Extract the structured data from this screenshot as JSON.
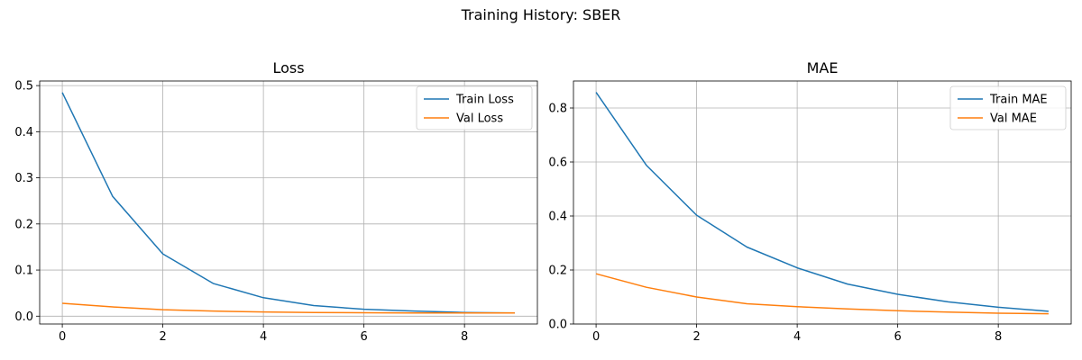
{
  "figure": {
    "suptitle": "Training History: SBER"
  },
  "chart_data": [
    {
      "type": "line",
      "title": "Loss",
      "xlabel": "",
      "ylabel": "",
      "x": [
        0,
        1,
        2,
        3,
        4,
        5,
        6,
        7,
        8,
        9
      ],
      "xlim": [
        -0.45,
        9.45
      ],
      "ylim": [
        -0.017,
        0.51
      ],
      "xticks": [
        0,
        2,
        4,
        6,
        8
      ],
      "yticks": [
        0.0,
        0.1,
        0.2,
        0.3,
        0.4,
        0.5
      ],
      "ytick_labels": [
        "0.0",
        "0.1",
        "0.2",
        "0.3",
        "0.4",
        "0.5"
      ],
      "grid": true,
      "legend_position": "top-right",
      "series": [
        {
          "name": "Train Loss",
          "color": "#1f77b4",
          "values": [
            0.485,
            0.26,
            0.135,
            0.071,
            0.04,
            0.023,
            0.015,
            0.011,
            0.008,
            0.007
          ]
        },
        {
          "name": "Val Loss",
          "color": "#ff7f0e",
          "values": [
            0.028,
            0.02,
            0.014,
            0.011,
            0.009,
            0.008,
            0.0075,
            0.007,
            0.007,
            0.007
          ]
        }
      ]
    },
    {
      "type": "line",
      "title": "MAE",
      "xlabel": "",
      "ylabel": "",
      "x": [
        0,
        1,
        2,
        3,
        4,
        5,
        6,
        7,
        8,
        9
      ],
      "xlim": [
        -0.45,
        9.45
      ],
      "ylim": [
        0.0,
        0.9
      ],
      "xticks": [
        0,
        2,
        4,
        6,
        8
      ],
      "yticks": [
        0.0,
        0.2,
        0.4,
        0.6,
        0.8
      ],
      "ytick_labels": [
        "0.0",
        "0.2",
        "0.4",
        "0.6",
        "0.8"
      ],
      "grid": true,
      "legend_position": "top-right",
      "series": [
        {
          "name": "Train MAE",
          "color": "#1f77b4",
          "values": [
            0.858,
            0.588,
            0.403,
            0.285,
            0.208,
            0.148,
            0.11,
            0.082,
            0.062,
            0.047
          ]
        },
        {
          "name": "Val MAE",
          "color": "#ff7f0e",
          "values": [
            0.186,
            0.136,
            0.1,
            0.075,
            0.064,
            0.056,
            0.049,
            0.044,
            0.04,
            0.038
          ]
        }
      ]
    }
  ]
}
